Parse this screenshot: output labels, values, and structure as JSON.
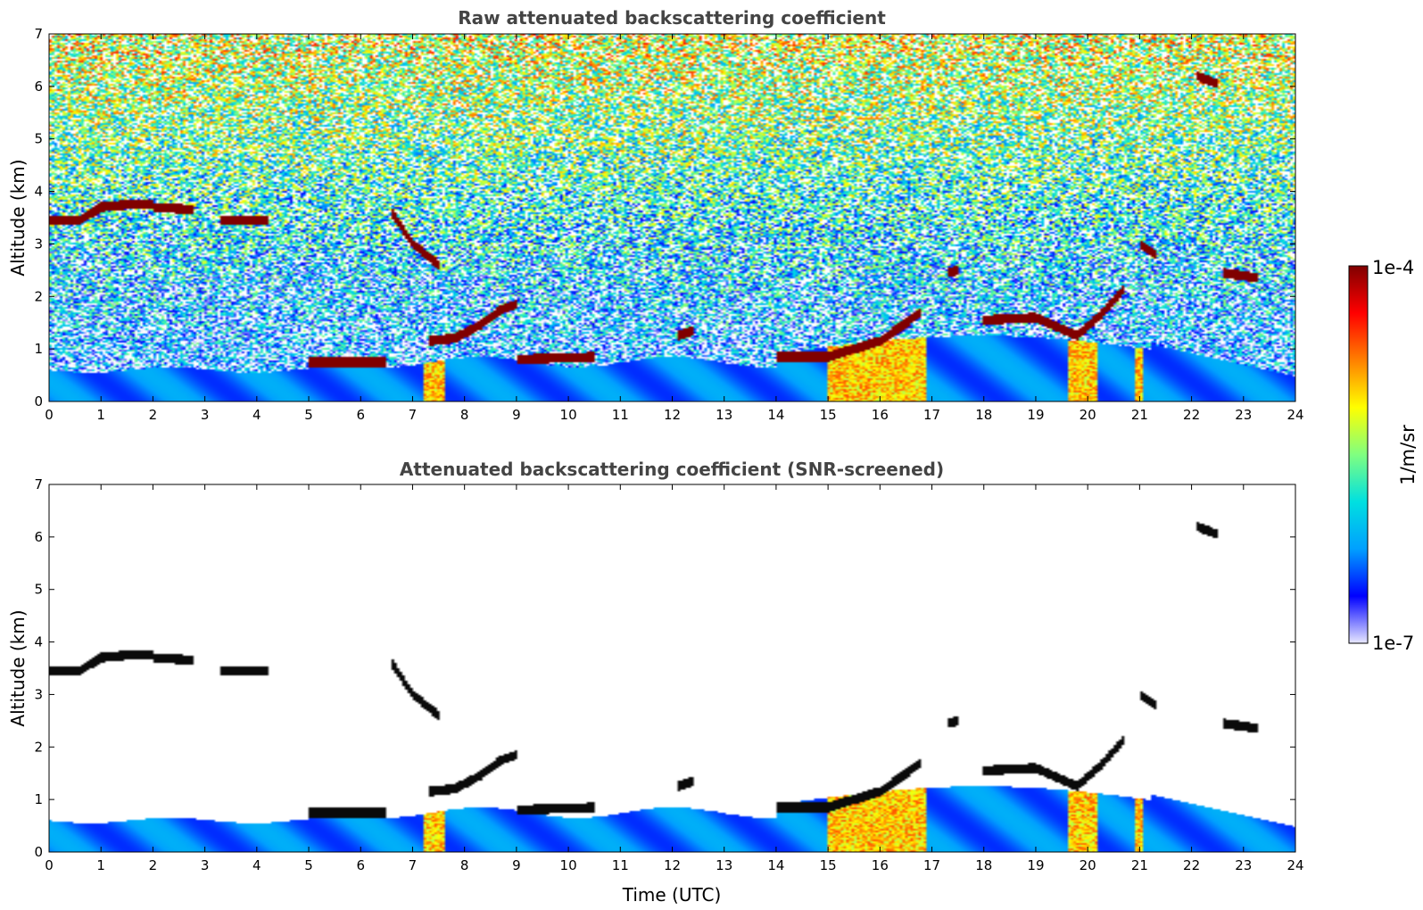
{
  "chart_data": [
    {
      "type": "heatmap",
      "title": "Raw attenuated backscattering coefficient",
      "xlabel": "",
      "ylabel": "Altitude (km)",
      "xlim": [
        0,
        24
      ],
      "ylim": [
        0,
        7
      ],
      "x_ticks": [
        "0",
        "1",
        "2",
        "3",
        "4",
        "5",
        "6",
        "7",
        "8",
        "9",
        "10",
        "11",
        "12",
        "13",
        "14",
        "15",
        "16",
        "17",
        "18",
        "19",
        "20",
        "21",
        "22",
        "23",
        "24"
      ],
      "y_ticks": [
        "0",
        "1",
        "2",
        "3",
        "4",
        "5",
        "6",
        "7"
      ],
      "screened": false,
      "layers": [
        {
          "t": [
            0.0,
            0.6,
            1.0,
            1.5,
            2.0
          ],
          "alt": [
            3.45,
            3.45,
            3.7,
            3.75,
            3.75
          ]
        },
        {
          "t": [
            2.0,
            2.8
          ],
          "alt": [
            3.7,
            3.65
          ]
        },
        {
          "t": [
            3.3,
            4.2
          ],
          "alt": [
            3.45,
            3.45
          ]
        },
        {
          "t": [
            6.6,
            7.0,
            7.5
          ],
          "alt": [
            3.6,
            3.0,
            2.6
          ]
        },
        {
          "t": [
            5.0,
            6.5
          ],
          "alt": [
            0.75,
            0.75
          ]
        },
        {
          "t": [
            7.3,
            7.8,
            8.3,
            8.7,
            9.0
          ],
          "alt": [
            1.15,
            1.2,
            1.45,
            1.75,
            1.85
          ]
        },
        {
          "t": [
            9.0,
            10.5
          ],
          "alt": [
            0.8,
            0.85
          ]
        },
        {
          "t": [
            12.1,
            12.4
          ],
          "alt": [
            1.25,
            1.35
          ]
        },
        {
          "t": [
            14.0,
            15.0,
            16.0,
            16.8
          ],
          "alt": [
            0.85,
            0.85,
            1.15,
            1.7
          ]
        },
        {
          "t": [
            17.3,
            17.5
          ],
          "alt": [
            2.45,
            2.5
          ]
        },
        {
          "t": [
            18.0,
            19.0,
            19.8,
            20.3,
            20.7
          ],
          "alt": [
            1.55,
            1.6,
            1.25,
            1.7,
            2.15
          ]
        },
        {
          "t": [
            21.0,
            21.3
          ],
          "alt": [
            3.0,
            2.8
          ]
        },
        {
          "t": [
            22.1,
            22.5
          ],
          "alt": [
            6.2,
            6.05
          ]
        },
        {
          "t": [
            22.6,
            23.3
          ],
          "alt": [
            2.45,
            2.35
          ]
        }
      ]
    },
    {
      "type": "heatmap",
      "title": "Attenuated backscattering coefficient (SNR-screened)",
      "xlabel": "Time (UTC)",
      "ylabel": "Altitude (km)",
      "xlim": [
        0,
        24
      ],
      "ylim": [
        0,
        7
      ],
      "x_ticks": [
        "0",
        "1",
        "2",
        "3",
        "4",
        "5",
        "6",
        "7",
        "8",
        "9",
        "10",
        "11",
        "12",
        "13",
        "14",
        "15",
        "16",
        "17",
        "18",
        "19",
        "20",
        "21",
        "22",
        "23",
        "24"
      ],
      "y_ticks": [
        "0",
        "1",
        "2",
        "3",
        "4",
        "5",
        "6",
        "7"
      ],
      "screened": true
    }
  ],
  "colorbar": {
    "label": "1/m/sr",
    "max_label": "1e-4",
    "min_label": "1e-7",
    "colors": [
      "#e8e8ff",
      "#0000ff",
      "#00a0ff",
      "#00e0e0",
      "#80ff80",
      "#ffff00",
      "#ff8000",
      "#ff0000",
      "#800000"
    ]
  }
}
